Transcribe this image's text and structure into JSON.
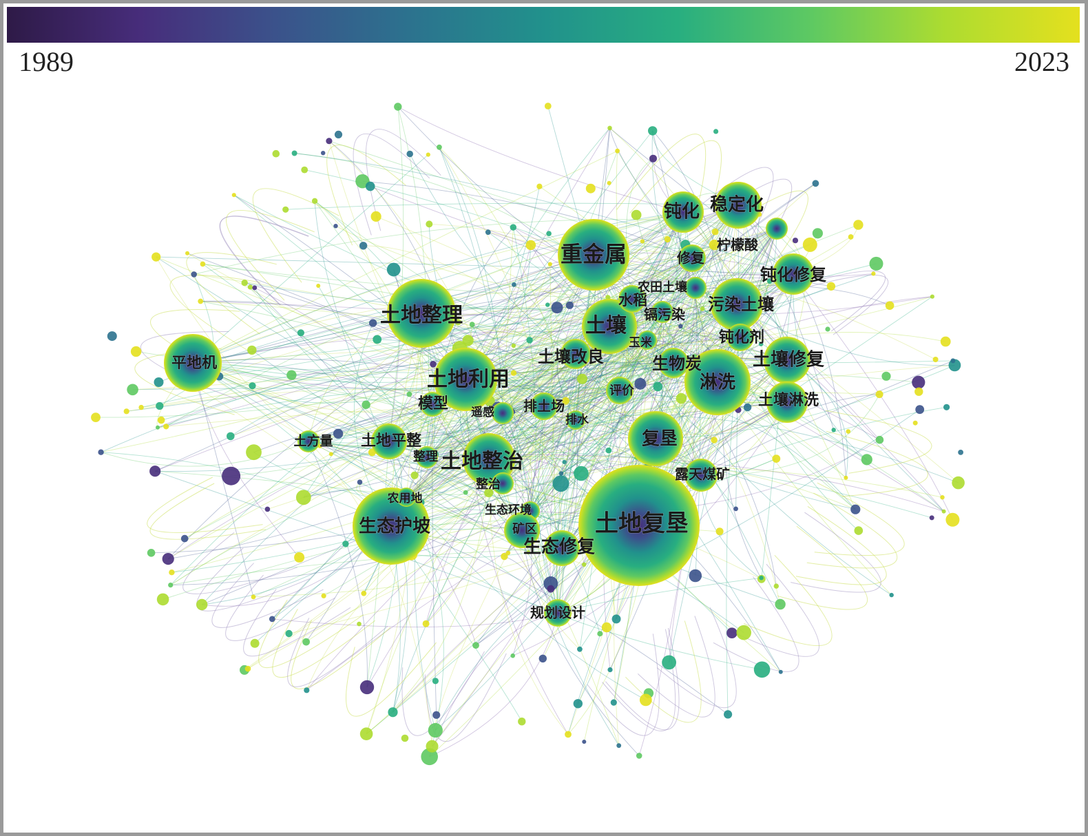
{
  "timeline": {
    "start_year": "1989",
    "end_year": "2023",
    "gradient": [
      "#2e1a47",
      "#472d7b",
      "#3b528b",
      "#2c728e",
      "#21918c",
      "#28ae80",
      "#5ec962",
      "#addc30",
      "#e4e01e"
    ]
  },
  "keywords": [
    {
      "id": "k1",
      "label": "土地复垦",
      "weight": 88
    },
    {
      "id": "k2",
      "label": "重金属",
      "weight": 52
    },
    {
      "id": "k3",
      "label": "土地整理",
      "weight": 50
    },
    {
      "id": "k4",
      "label": "生态护坡",
      "weight": 56
    },
    {
      "id": "k5",
      "label": "土地利用",
      "weight": 46
    },
    {
      "id": "k6",
      "label": "土壤",
      "weight": 40
    },
    {
      "id": "k7",
      "label": "平地机",
      "weight": 42
    },
    {
      "id": "k8",
      "label": "淋洗",
      "weight": 48
    },
    {
      "id": "k9",
      "label": "复垦",
      "weight": 40
    },
    {
      "id": "k10",
      "label": "稳定化",
      "weight": 34
    },
    {
      "id": "k11",
      "label": "钝化",
      "weight": 30
    },
    {
      "id": "k12",
      "label": "污染土壤",
      "weight": 38
    },
    {
      "id": "k13",
      "label": "土壤修复",
      "weight": 34
    },
    {
      "id": "k14",
      "label": "土地整治",
      "weight": 38
    },
    {
      "id": "k15",
      "label": "钝化修复",
      "weight": 30
    },
    {
      "id": "k16",
      "label": "土壤淋洗",
      "weight": 30
    },
    {
      "id": "k17",
      "label": "生态修复",
      "weight": 26
    },
    {
      "id": "k18",
      "label": "土地平整",
      "weight": 26
    },
    {
      "id": "k19",
      "label": "露天煤矿",
      "weight": 24
    },
    {
      "id": "k20",
      "label": "规划设计",
      "weight": 20
    },
    {
      "id": "k21",
      "label": "土壤改良",
      "weight": 22
    },
    {
      "id": "k22",
      "label": "生物炭",
      "weight": 22
    },
    {
      "id": "k23",
      "label": "钝化剂",
      "weight": 20
    },
    {
      "id": "k24",
      "label": "修复",
      "weight": 20
    },
    {
      "id": "k25",
      "label": "柠檬酸",
      "weight": 16
    },
    {
      "id": "k26",
      "label": "模型",
      "weight": 18
    },
    {
      "id": "k27",
      "label": "评价",
      "weight": 20
    },
    {
      "id": "k28",
      "label": "排土场",
      "weight": 20
    },
    {
      "id": "k29",
      "label": "土方量",
      "weight": 16
    },
    {
      "id": "k30",
      "label": "水稻",
      "weight": 20
    },
    {
      "id": "k31",
      "label": "农田土壤",
      "weight": 16
    },
    {
      "id": "k32",
      "label": "镉污染",
      "weight": 16
    },
    {
      "id": "k33",
      "label": "玉米",
      "weight": 14
    },
    {
      "id": "k34",
      "label": "遥感",
      "weight": 16
    },
    {
      "id": "k35",
      "label": "排水",
      "weight": 14
    },
    {
      "id": "k36",
      "label": "整理",
      "weight": 16
    },
    {
      "id": "k37",
      "label": "整治",
      "weight": 16
    },
    {
      "id": "k38",
      "label": "农用地",
      "weight": 14
    },
    {
      "id": "k39",
      "label": "生态环境",
      "weight": 14
    },
    {
      "id": "k40",
      "label": "矿区",
      "weight": 26
    }
  ]
}
